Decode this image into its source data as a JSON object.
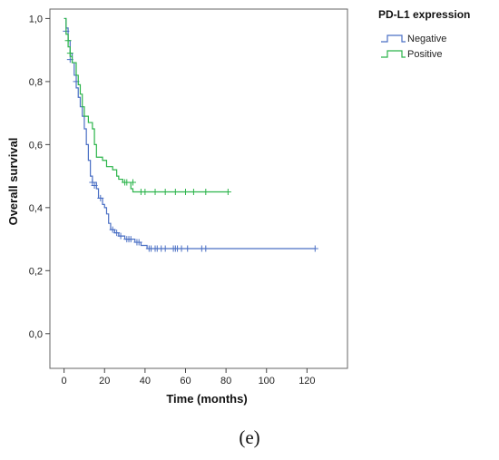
{
  "chart_data": {
    "type": "line",
    "xlabel": "Time (months)",
    "ylabel": "Overall survival",
    "xlim": [
      -7,
      140
    ],
    "ylim": [
      -0.11,
      1.03
    ],
    "xticks": [
      0,
      20,
      40,
      60,
      80,
      100,
      120
    ],
    "xtick_labels": [
      "0",
      "20",
      "40",
      "60",
      "80",
      "100",
      "120"
    ],
    "yticks": [
      0.0,
      0.2,
      0.4,
      0.6,
      0.8,
      1.0
    ],
    "ytick_labels": [
      "0,0",
      "0,2",
      "0,4",
      "0,6",
      "0,8",
      "1,0"
    ],
    "legend_title": "PD-L1 expression",
    "legend_position": "top-right",
    "grid": false,
    "series": [
      {
        "name": "Negative",
        "color": "#4a6fc4",
        "step": [
          [
            0,
            1.0
          ],
          [
            1,
            0.97
          ],
          [
            2,
            0.93
          ],
          [
            3,
            0.89
          ],
          [
            4,
            0.86
          ],
          [
            5,
            0.82
          ],
          [
            6,
            0.78
          ],
          [
            7,
            0.75
          ],
          [
            8,
            0.72
          ],
          [
            9,
            0.69
          ],
          [
            10,
            0.65
          ],
          [
            11,
            0.6
          ],
          [
            12,
            0.55
          ],
          [
            13,
            0.5
          ],
          [
            14,
            0.48
          ],
          [
            16,
            0.46
          ],
          [
            17,
            0.43
          ],
          [
            19,
            0.41
          ],
          [
            20,
            0.4
          ],
          [
            21,
            0.38
          ],
          [
            22,
            0.35
          ],
          [
            23,
            0.33
          ],
          [
            25,
            0.32
          ],
          [
            27,
            0.31
          ],
          [
            30,
            0.3
          ],
          [
            35,
            0.29
          ],
          [
            38,
            0.28
          ],
          [
            41,
            0.27
          ],
          [
            124,
            0.27
          ]
        ],
        "censored": [
          [
            1,
            0.96
          ],
          [
            3,
            0.87
          ],
          [
            6,
            0.8
          ],
          [
            14,
            0.48
          ],
          [
            15,
            0.47
          ],
          [
            18,
            0.43
          ],
          [
            24,
            0.33
          ],
          [
            26,
            0.32
          ],
          [
            28,
            0.31
          ],
          [
            31,
            0.3
          ],
          [
            32,
            0.3
          ],
          [
            33,
            0.3
          ],
          [
            36,
            0.29
          ],
          [
            37,
            0.29
          ],
          [
            42,
            0.27
          ],
          [
            43,
            0.27
          ],
          [
            45,
            0.27
          ],
          [
            46,
            0.27
          ],
          [
            48,
            0.27
          ],
          [
            50,
            0.27
          ],
          [
            54,
            0.27
          ],
          [
            55,
            0.27
          ],
          [
            56,
            0.27
          ],
          [
            58,
            0.27
          ],
          [
            61,
            0.27
          ],
          [
            68,
            0.27
          ],
          [
            70,
            0.27
          ],
          [
            124,
            0.27
          ]
        ]
      },
      {
        "name": "Positive",
        "color": "#2bb44a",
        "step": [
          [
            0,
            1.0
          ],
          [
            1,
            0.95
          ],
          [
            2,
            0.91
          ],
          [
            3,
            0.88
          ],
          [
            4,
            0.86
          ],
          [
            6,
            0.82
          ],
          [
            7,
            0.79
          ],
          [
            8,
            0.76
          ],
          [
            9,
            0.72
          ],
          [
            10,
            0.69
          ],
          [
            12,
            0.67
          ],
          [
            14,
            0.65
          ],
          [
            15,
            0.6
          ],
          [
            16,
            0.56
          ],
          [
            19,
            0.55
          ],
          [
            21,
            0.53
          ],
          [
            24,
            0.52
          ],
          [
            26,
            0.5
          ],
          [
            27,
            0.49
          ],
          [
            29,
            0.48
          ],
          [
            33,
            0.46
          ],
          [
            34,
            0.45
          ],
          [
            81,
            0.45
          ]
        ],
        "censored": [
          [
            2,
            0.93
          ],
          [
            3,
            0.89
          ],
          [
            30,
            0.48
          ],
          [
            31,
            0.48
          ],
          [
            34,
            0.48
          ],
          [
            38,
            0.45
          ],
          [
            40,
            0.45
          ],
          [
            45,
            0.45
          ],
          [
            50,
            0.45
          ],
          [
            55,
            0.45
          ],
          [
            60,
            0.45
          ],
          [
            64,
            0.45
          ],
          [
            70,
            0.45
          ],
          [
            81,
            0.45
          ]
        ]
      }
    ]
  },
  "panel_label": "(e)"
}
